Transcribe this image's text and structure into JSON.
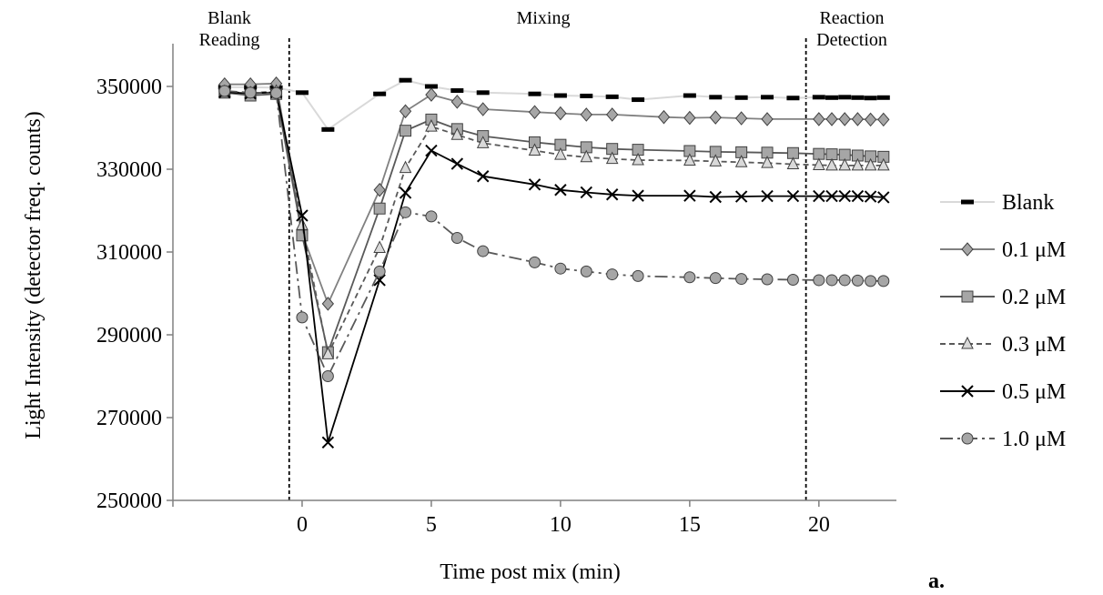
{
  "chart_data": {
    "type": "line",
    "xlabel": "Time post mix (min)",
    "ylabel": "Light Intensity (detector freq. counts)",
    "xlim": [
      -5,
      23
    ],
    "ylim": [
      250000,
      350000
    ],
    "x_ticks": [
      0,
      5,
      10,
      15,
      20
    ],
    "y_ticks": [
      250000,
      270000,
      290000,
      310000,
      330000,
      350000
    ],
    "x_tick_labels": [
      "0",
      "5",
      "10",
      "15",
      "20"
    ],
    "y_tick_labels": [
      "250000",
      "270000",
      "290000",
      "310000",
      "330000",
      "350000"
    ],
    "grid": false,
    "legend_position": "right",
    "panel_label": "a.",
    "regions": [
      {
        "label_lines": [
          "Blank",
          "Reading"
        ],
        "x_start": -5,
        "x_end": -0.5
      },
      {
        "label_lines": [
          "Mixing"
        ],
        "x_start": -0.5,
        "x_end": 19.5
      },
      {
        "label_lines": [
          "Reaction",
          "Detection"
        ],
        "x_start": 19.5,
        "x_end": 23
      }
    ],
    "dividers_x": [
      -0.5,
      19.5
    ],
    "series": [
      {
        "name": "Blank",
        "color": "#d9d9d9",
        "marker": "dash",
        "marker_color": "#000000",
        "line": "solid",
        "points": [
          [
            -3,
            349800
          ],
          [
            -2,
            349800
          ],
          [
            -1,
            349700
          ],
          [
            0,
            348500
          ],
          [
            1,
            339600
          ],
          [
            3,
            348200
          ],
          [
            4,
            351500
          ],
          [
            5,
            350000
          ],
          [
            6,
            349000
          ],
          [
            7,
            348500
          ],
          [
            9,
            348200
          ],
          [
            10,
            347800
          ],
          [
            11,
            347700
          ],
          [
            12,
            347500
          ],
          [
            13,
            346800
          ],
          [
            15,
            347800
          ],
          [
            16,
            347400
          ],
          [
            17,
            347300
          ],
          [
            18,
            347400
          ],
          [
            19,
            347200
          ],
          [
            20,
            347400
          ],
          [
            20.5,
            347300
          ],
          [
            21,
            347400
          ],
          [
            21.5,
            347300
          ],
          [
            22,
            347200
          ],
          [
            22.5,
            347300
          ]
        ]
      },
      {
        "name": "0.1 μM",
        "color": "#808080",
        "marker": "diamond",
        "marker_color": "#a6a6a6",
        "line": "solid",
        "points": [
          [
            -3,
            350500
          ],
          [
            -2,
            350500
          ],
          [
            -1,
            350700
          ],
          [
            0,
            314500
          ],
          [
            1,
            297500
          ],
          [
            3,
            325000
          ],
          [
            4,
            344000
          ],
          [
            5,
            348000
          ],
          [
            6,
            346300
          ],
          [
            7,
            344500
          ],
          [
            9,
            343800
          ],
          [
            10,
            343500
          ],
          [
            11,
            343200
          ],
          [
            12,
            343200
          ],
          [
            14,
            342600
          ],
          [
            15,
            342400
          ],
          [
            16,
            342500
          ],
          [
            17,
            342300
          ],
          [
            18,
            342100
          ],
          [
            20,
            342100
          ],
          [
            20.5,
            342100
          ],
          [
            21,
            342100
          ],
          [
            21.5,
            342100
          ],
          [
            22,
            342000
          ],
          [
            22.5,
            342000
          ]
        ]
      },
      {
        "name": "0.2 μM",
        "color": "#595959",
        "marker": "square",
        "marker_color": "#a6a6a6",
        "line": "solid",
        "points": [
          [
            -3,
            348500
          ],
          [
            -2,
            347800
          ],
          [
            -1,
            348200
          ],
          [
            0,
            314000
          ],
          [
            1,
            285800
          ],
          [
            3,
            320500
          ],
          [
            4,
            339300
          ],
          [
            5,
            342000
          ],
          [
            6,
            339700
          ],
          [
            7,
            338000
          ],
          [
            9,
            336500
          ],
          [
            10,
            335900
          ],
          [
            11,
            335300
          ],
          [
            12,
            334900
          ],
          [
            13,
            334700
          ],
          [
            15,
            334400
          ],
          [
            16,
            334200
          ],
          [
            17,
            334100
          ],
          [
            18,
            334000
          ],
          [
            19,
            333900
          ],
          [
            20,
            333700
          ],
          [
            20.5,
            333600
          ],
          [
            21,
            333500
          ],
          [
            21.5,
            333300
          ],
          [
            22,
            333100
          ],
          [
            22.5,
            333000
          ]
        ]
      },
      {
        "name": "0.3 μM",
        "color": "#595959",
        "marker": "triangle",
        "marker_color": "#d9d9d9",
        "line": "dashed",
        "points": [
          [
            -3,
            348700
          ],
          [
            -2,
            348400
          ],
          [
            -1,
            348800
          ],
          [
            0,
            316500
          ],
          [
            1,
            285300
          ],
          [
            3,
            311000
          ],
          [
            4,
            330300
          ],
          [
            5,
            340300
          ],
          [
            6,
            338300
          ],
          [
            7,
            336300
          ],
          [
            9,
            334500
          ],
          [
            10,
            333500
          ],
          [
            11,
            332900
          ],
          [
            12,
            332500
          ],
          [
            13,
            332200
          ],
          [
            15,
            332100
          ],
          [
            16,
            331900
          ],
          [
            17,
            331700
          ],
          [
            18,
            331500
          ],
          [
            19,
            331200
          ],
          [
            20,
            331000
          ],
          [
            20.5,
            330900
          ],
          [
            21,
            330900
          ],
          [
            21.5,
            330900
          ],
          [
            22,
            330900
          ],
          [
            22.5,
            330900
          ]
        ]
      },
      {
        "name": "0.5 μM",
        "color": "#000000",
        "marker": "x",
        "marker_color": "#000000",
        "line": "solid",
        "points": [
          [
            -3,
            348600
          ],
          [
            -2,
            348300
          ],
          [
            -1,
            348600
          ],
          [
            0,
            318800
          ],
          [
            1,
            264000
          ],
          [
            3,
            303200
          ],
          [
            4,
            324300
          ],
          [
            5,
            334500
          ],
          [
            6,
            331300
          ],
          [
            7,
            328300
          ],
          [
            9,
            326300
          ],
          [
            10,
            325000
          ],
          [
            11,
            324400
          ],
          [
            12,
            323900
          ],
          [
            13,
            323600
          ],
          [
            15,
            323600
          ],
          [
            16,
            323300
          ],
          [
            17,
            323400
          ],
          [
            18,
            323500
          ],
          [
            19,
            323500
          ],
          [
            20,
            323500
          ],
          [
            20.5,
            323500
          ],
          [
            21,
            323500
          ],
          [
            21.5,
            323500
          ],
          [
            22,
            323400
          ],
          [
            22.5,
            323200
          ]
        ]
      },
      {
        "name": "1.0 μM",
        "color": "#595959",
        "marker": "circle",
        "marker_color": "#a6a6a6",
        "line": "dashdot",
        "points": [
          [
            -3,
            348900
          ],
          [
            -2,
            348500
          ],
          [
            -1,
            348400
          ],
          [
            0,
            294200
          ],
          [
            1,
            280000
          ],
          [
            3,
            305300
          ],
          [
            4,
            319600
          ],
          [
            5,
            318600
          ],
          [
            6,
            313400
          ],
          [
            7,
            310200
          ],
          [
            9,
            307500
          ],
          [
            10,
            306000
          ],
          [
            11,
            305300
          ],
          [
            12,
            304600
          ],
          [
            13,
            304200
          ],
          [
            15,
            303900
          ],
          [
            16,
            303700
          ],
          [
            17,
            303500
          ],
          [
            18,
            303400
          ],
          [
            19,
            303300
          ],
          [
            20,
            303200
          ],
          [
            20.5,
            303200
          ],
          [
            21,
            303200
          ],
          [
            21.5,
            303100
          ],
          [
            22,
            303000
          ],
          [
            22.5,
            303000
          ]
        ]
      }
    ]
  }
}
